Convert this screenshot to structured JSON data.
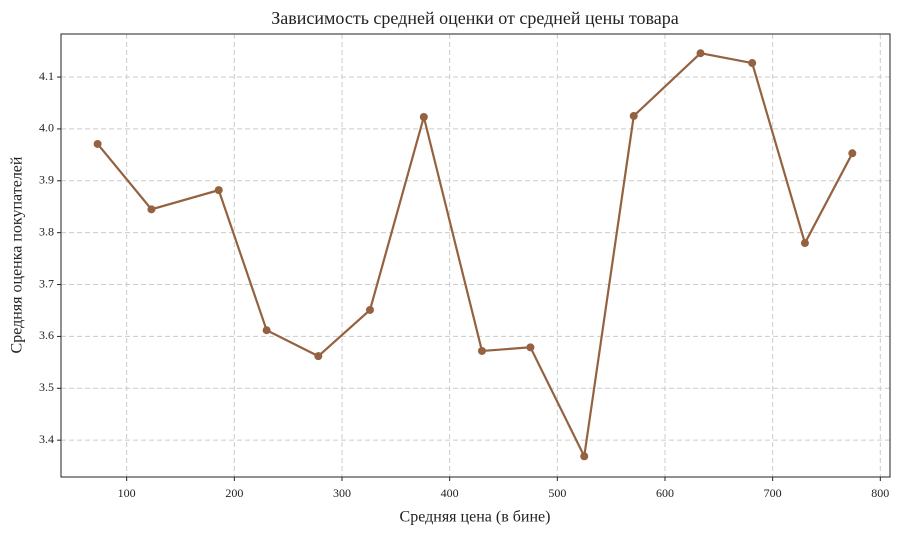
{
  "chart_data": {
    "type": "line",
    "title": "Зависимость средней оценки от средней цены товара",
    "x_label": "Средняя цена (в бине)",
    "y_label": "Средняя оценка покупателей",
    "x": [
      73,
      123,
      185.5,
      230,
      278,
      326,
      376,
      430,
      475,
      525,
      571,
      633,
      681,
      730,
      774
    ],
    "series": [
      {
        "color": "#946240",
        "values": [
          3.971,
          3.845,
          3.882,
          3.612,
          3.562,
          3.651,
          4.023,
          3.572,
          3.579,
          3.369,
          4.025,
          4.146,
          4.127,
          3.78,
          3.953
        ]
      }
    ],
    "xlim": [
      39,
      809
    ],
    "ylim": [
      3.329,
      4.183
    ],
    "xticks": [
      100,
      200,
      300,
      400,
      500,
      600,
      700,
      800
    ],
    "yticks": [
      3.4,
      3.5,
      3.6,
      3.7,
      3.8,
      3.9,
      {
        "value": 4,
        "label": "4.0"
      },
      4.1
    ],
    "grid": true
  }
}
